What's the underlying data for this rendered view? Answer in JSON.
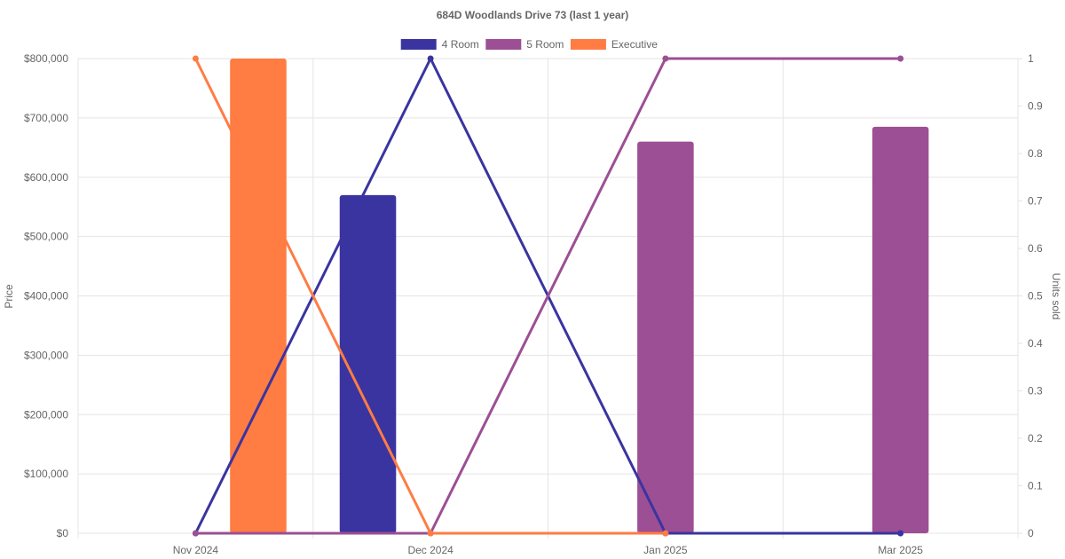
{
  "chart_data": {
    "type": "bar",
    "title": "684D Woodlands Drive 73 (last 1 year)",
    "categories": [
      "Nov 2024",
      "Dec 2024",
      "Jan 2025",
      "Mar 2025"
    ],
    "y_left": {
      "label": "Price",
      "ylim": [
        0,
        800000
      ],
      "ticks": [
        "$0",
        "$100,000",
        "$200,000",
        "$300,000",
        "$400,000",
        "$500,000",
        "$600,000",
        "$700,000",
        "$800,000"
      ],
      "tick_values": [
        0,
        100000,
        200000,
        300000,
        400000,
        500000,
        600000,
        700000,
        800000
      ]
    },
    "y_right": {
      "label": "Units sold",
      "ylim": [
        0,
        1
      ],
      "ticks": [
        "0",
        "0.1",
        "0.2",
        "0.3",
        "0.4",
        "0.5",
        "0.6",
        "0.7",
        "0.8",
        "0.9",
        "1"
      ],
      "tick_values": [
        0,
        0.1,
        0.2,
        0.3,
        0.4,
        0.5,
        0.6,
        0.7,
        0.8,
        0.9,
        1
      ]
    },
    "legend_position": "top-center",
    "grid": true,
    "series": [
      {
        "name": "4 Room",
        "color": "#3a34a0",
        "price": [
          null,
          570000,
          null,
          null
        ],
        "units": [
          0,
          1,
          0,
          0
        ]
      },
      {
        "name": "5 Room",
        "color": "#9c4f94",
        "price": [
          null,
          null,
          660000,
          685000
        ],
        "units": [
          0,
          0,
          1,
          1
        ]
      },
      {
        "name": "Executive",
        "color": "#ff7c43",
        "price": [
          800000,
          null,
          null,
          null
        ],
        "units": [
          1,
          0,
          0,
          null
        ]
      }
    ]
  }
}
